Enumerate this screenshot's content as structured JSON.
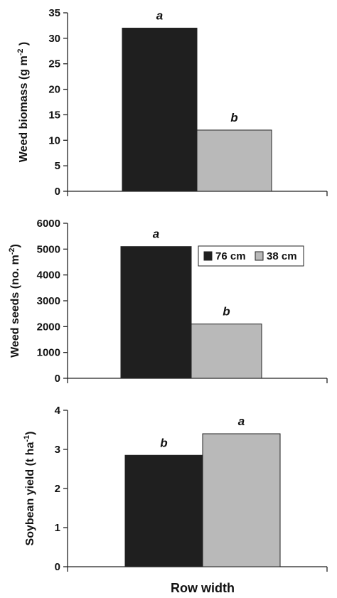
{
  "colors": {
    "76 cm": "#1f1f1f",
    "38 cm": "#b9b9b9"
  },
  "legend": {
    "items": [
      {
        "label": "76 cm",
        "color": "#1f1f1f"
      },
      {
        "label": "38 cm",
        "color": "#b9b9b9"
      }
    ],
    "placement": "inside-top-right of middle panel"
  },
  "x_axis_title": "Row width",
  "chart_data": [
    {
      "type": "bar",
      "ylabel_main": "Weed biomass (g m",
      "ylabel_sup": "-2",
      "ylabel_tail": " )",
      "ylim": [
        0,
        35
      ],
      "yticks": [
        0,
        5,
        10,
        15,
        20,
        25,
        30,
        35
      ],
      "series": [
        {
          "name": "76 cm",
          "values": [
            32
          ],
          "labels": [
            "a"
          ]
        },
        {
          "name": "38 cm",
          "values": [
            12
          ],
          "labels": [
            "b"
          ]
        }
      ],
      "grid": false
    },
    {
      "type": "bar",
      "ylabel_main": "Weed seeds (no. m",
      "ylabel_sup": "-2",
      "ylabel_tail": ")",
      "ylim": [
        0,
        6000
      ],
      "yticks": [
        0,
        1000,
        2000,
        3000,
        4000,
        5000,
        6000
      ],
      "series": [
        {
          "name": "76 cm",
          "values": [
            5100
          ],
          "labels": [
            "a"
          ]
        },
        {
          "name": "38 cm",
          "values": [
            2100
          ],
          "labels": [
            "b"
          ]
        }
      ],
      "grid": false
    },
    {
      "type": "bar",
      "ylabel_main": "Soybean yield (t ha",
      "ylabel_sup": "-1",
      "ylabel_tail": ")",
      "ylim": [
        0,
        4
      ],
      "yticks": [
        0,
        1,
        2,
        3,
        4
      ],
      "series": [
        {
          "name": "76 cm",
          "values": [
            2.85
          ],
          "labels": [
            "b"
          ]
        },
        {
          "name": "38 cm",
          "values": [
            3.4
          ],
          "labels": [
            "a"
          ]
        }
      ],
      "grid": false
    }
  ]
}
